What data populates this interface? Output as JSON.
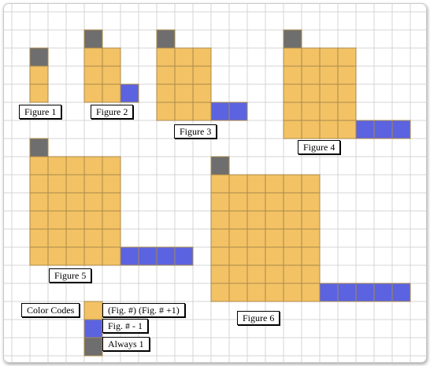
{
  "colors": {
    "square": "#F3C264",
    "rect": "#5B63E0",
    "one": "#6E6E6E",
    "grid": "#D4D4D4",
    "block_grid": "#A98A4C"
  },
  "figures": [
    {
      "label": "Figure 1",
      "n": 1
    },
    {
      "label": "Figure 2",
      "n": 2
    },
    {
      "label": "Figure 3",
      "n": 3
    },
    {
      "label": "Figure 4",
      "n": 4
    },
    {
      "label": "Figure 5",
      "n": 5
    },
    {
      "label": "Figure 6",
      "n": 6
    }
  ],
  "legend": {
    "title": "Color Codes",
    "items": [
      {
        "label": "(Fig. #) (Fig. # +1)",
        "color_key": "square"
      },
      {
        "label": "Fig. # - 1",
        "color_key": "rect"
      },
      {
        "label": "Always 1",
        "color_key": "one"
      }
    ]
  }
}
